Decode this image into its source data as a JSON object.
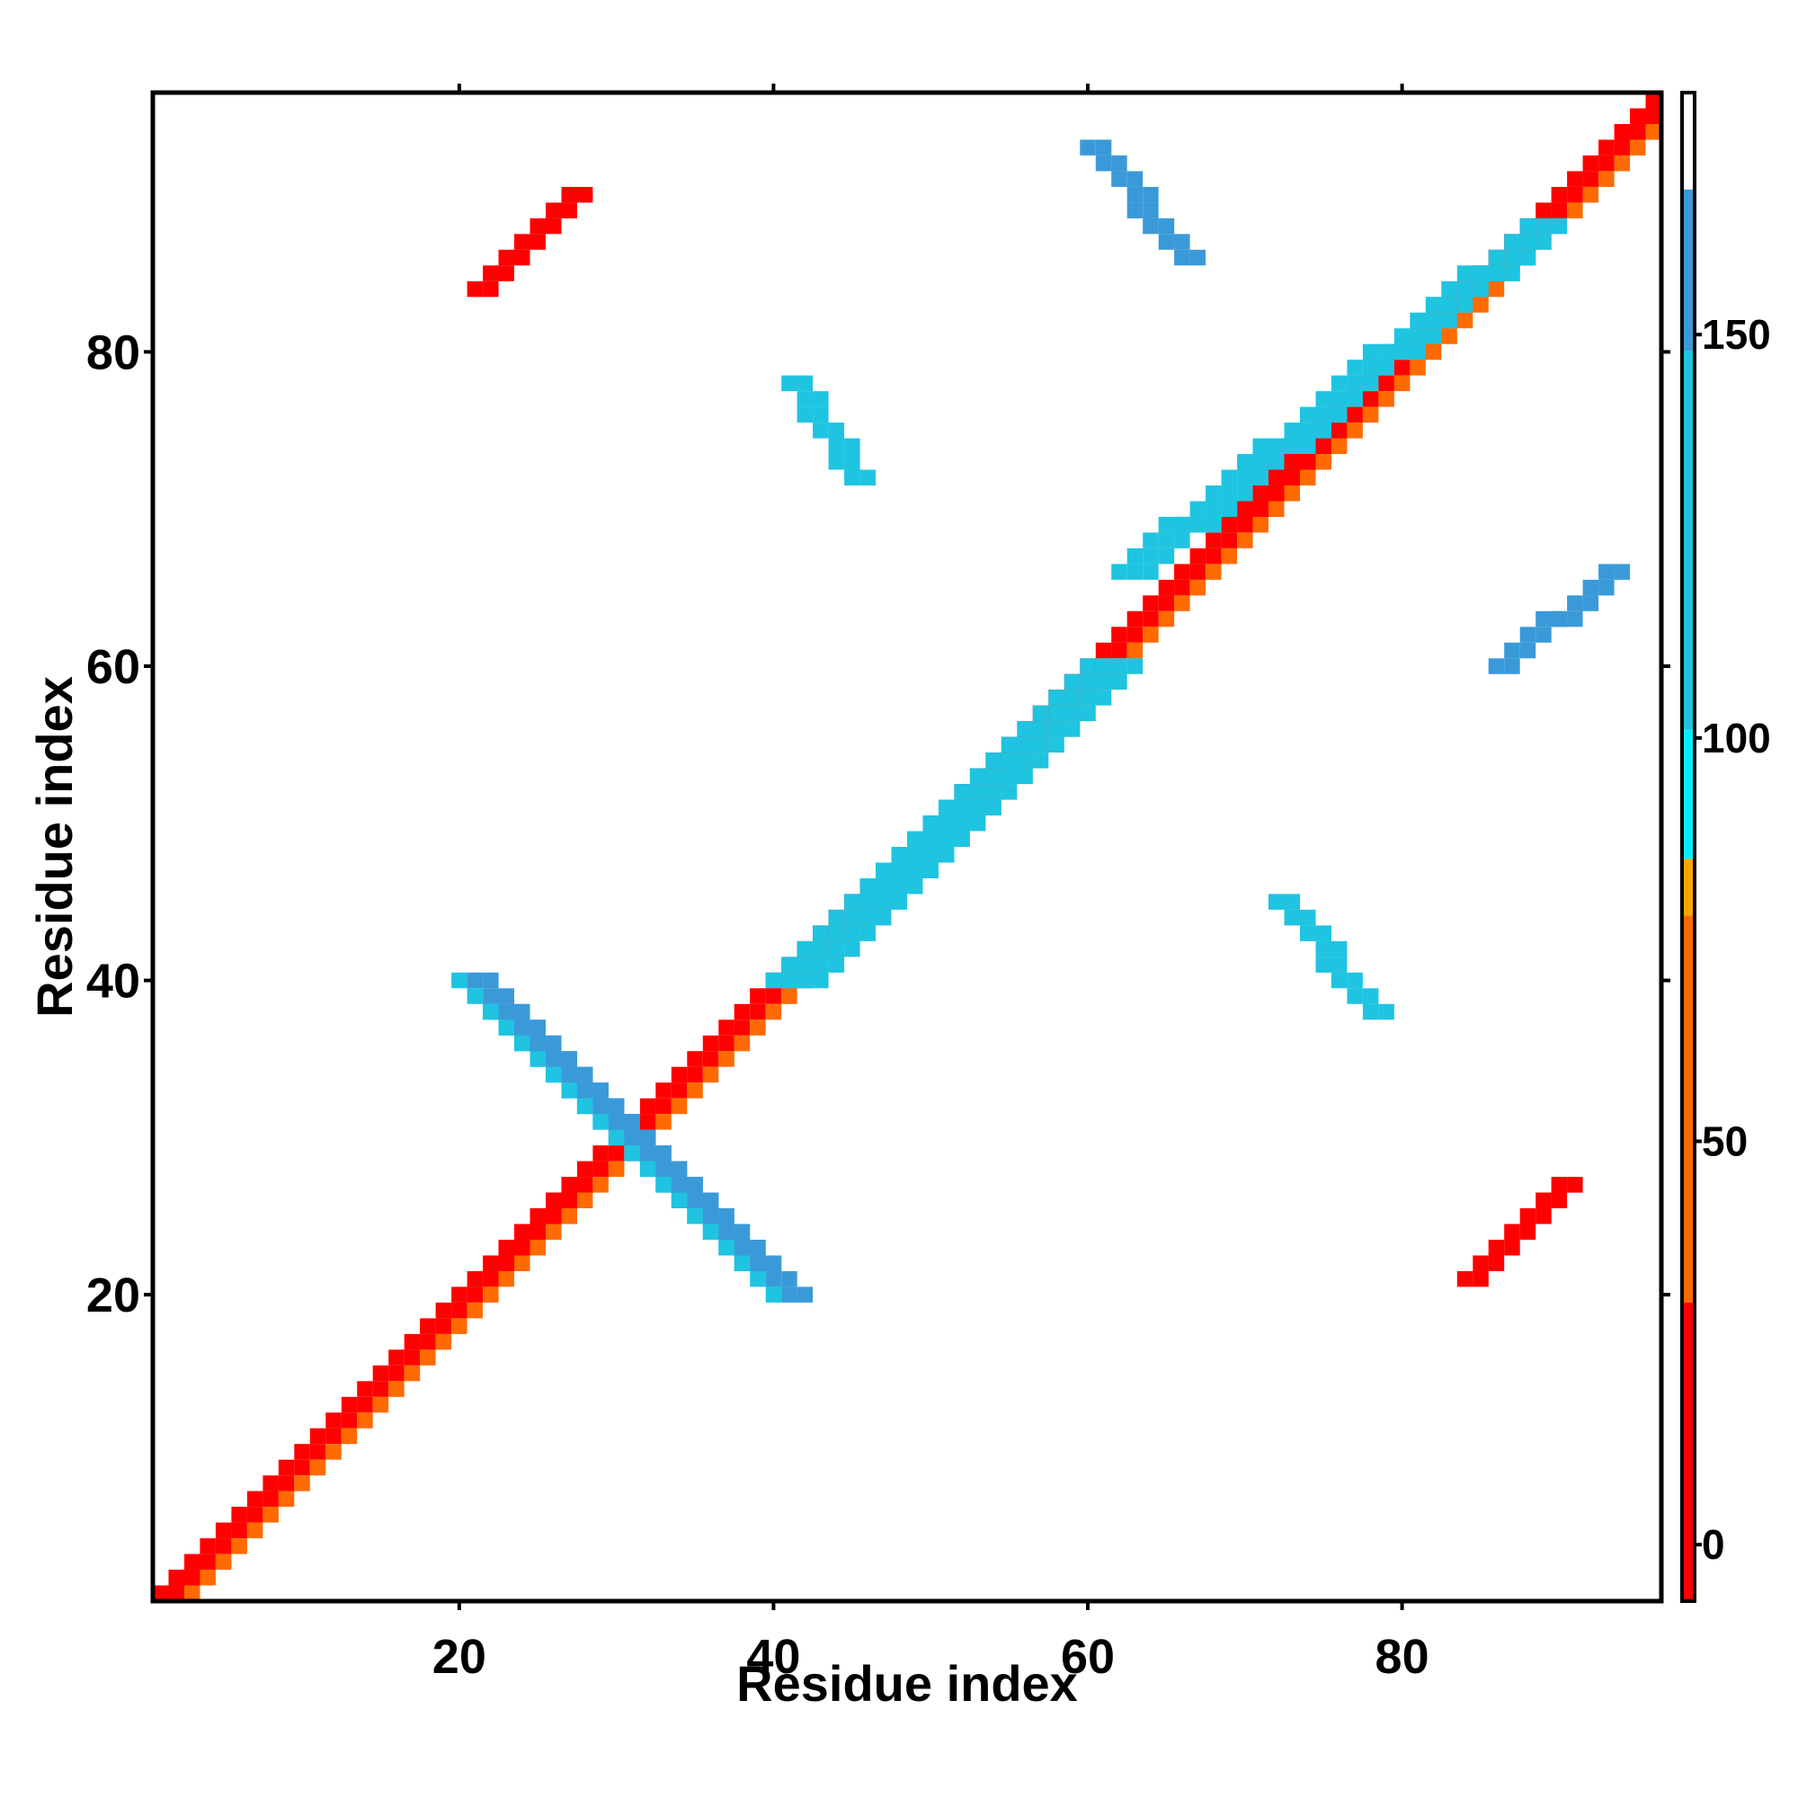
{
  "chart_data": {
    "type": "heatmap",
    "title": "",
    "xlabel": "Residue index",
    "ylabel": "Residue index",
    "xlim": [
      0.5,
      96.5
    ],
    "ylim": [
      0.5,
      96.5
    ],
    "x_ticks": [
      20,
      40,
      60,
      80
    ],
    "y_ticks": [
      20,
      40,
      60,
      80
    ],
    "colorbar": {
      "range": [
        -7,
        180
      ],
      "ticks": [
        0,
        50,
        100,
        150
      ],
      "bands": [
        {
          "from": -7,
          "to": 30,
          "color": "#ff0000"
        },
        {
          "from": 30,
          "to": 78,
          "color": "#ff6a00"
        },
        {
          "from": 78,
          "to": 85,
          "color": "#ffa500"
        },
        {
          "from": 85,
          "to": 101,
          "color": "#00eeff"
        },
        {
          "from": 101,
          "to": 148,
          "color": "#1fc4e0"
        },
        {
          "from": 148,
          "to": 168,
          "color": "#3a9ad8"
        },
        {
          "from": 168,
          "to": 180,
          "color": "#ffffff"
        }
      ]
    },
    "grid": false,
    "regions": [
      {
        "name": "diagonal strand",
        "from": [
          1,
          1
        ],
        "to": [
          96,
          96
        ],
        "width": 2,
        "value": 20
      },
      {
        "name": "diagonal band 2",
        "from": [
          3,
          1
        ],
        "to": [
          96,
          94
        ],
        "width": 1,
        "value": 45
      },
      {
        "name": "antiparallel hairpin",
        "from": [
          20,
          40
        ],
        "to": [
          38,
          22
        ],
        "width": 3,
        "value": 150
      },
      {
        "name": "antiparallel hairpin mirror",
        "from": [
          40,
          20
        ],
        "to": [
          22,
          38
        ],
        "width": 3,
        "value": 150
      },
      {
        "name": "parallel pair A",
        "from": [
          21,
          84
        ],
        "to": [
          27,
          90
        ],
        "width": 2,
        "value": 20
      },
      {
        "name": "parallel pair B",
        "from": [
          84,
          21
        ],
        "to": [
          90,
          27
        ],
        "width": 2,
        "value": 20
      },
      {
        "name": "off-diagonal cluster 1",
        "from": [
          60,
          93
        ],
        "to": [
          66,
          86
        ],
        "width": 2,
        "value": 160
      },
      {
        "name": "off-diagonal cluster 2",
        "from": [
          86,
          60
        ],
        "to": [
          93,
          66
        ],
        "width": 2,
        "value": 160
      },
      {
        "name": "diagonal sheet 1",
        "from": [
          40,
          40
        ],
        "to": [
          60,
          60
        ],
        "width": 4,
        "value": 110
      },
      {
        "name": "diagonal sheet 2",
        "from": [
          62,
          66
        ],
        "to": [
          88,
          88
        ],
        "width": 3,
        "value": 115
      },
      {
        "name": "scatter 1",
        "from": [
          41,
          78
        ],
        "to": [
          45,
          72
        ],
        "width": 2,
        "value": 130
      },
      {
        "name": "scatter 2",
        "from": [
          72,
          45
        ],
        "to": [
          78,
          38
        ],
        "width": 2,
        "value": 130
      }
    ]
  }
}
